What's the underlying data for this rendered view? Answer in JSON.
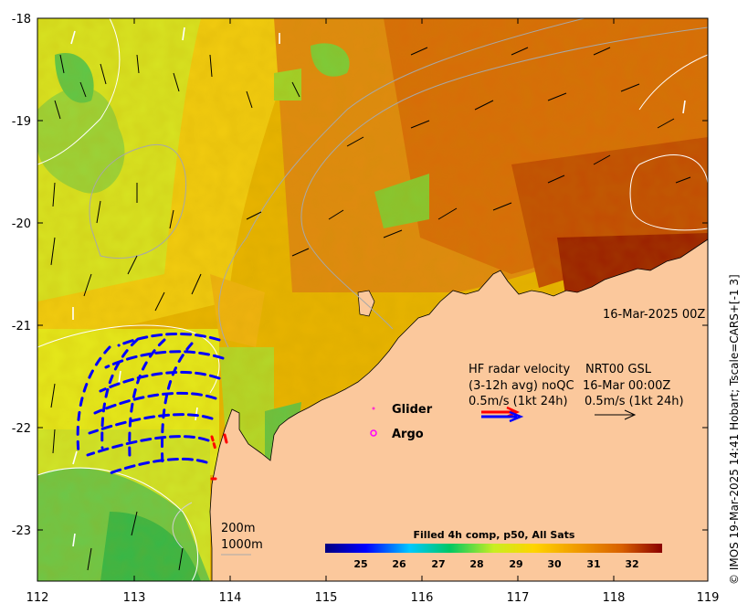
{
  "map": {
    "x_ticks": [
      "112",
      "113",
      "114",
      "115",
      "116",
      "117",
      "118",
      "119"
    ],
    "y_ticks": [
      "-18",
      "-19",
      "-20",
      "-21",
      "-22",
      "-23"
    ],
    "lon_range": [
      112,
      119
    ],
    "lat_range": [
      -23.5,
      -18
    ],
    "timestamp_label": "16-Mar-2025 00Z",
    "legend": {
      "glider_label": "Glider",
      "glider_color": "#ff33cc",
      "argo_label": "Argo",
      "argo_color": "#ff00ff",
      "hf_line1": "HF radar velocity",
      "hf_line2": "(3-12h avg) noQC",
      "hf_line3": "0.5m/s (1kt 24h)",
      "nrt_line1": "NRT00 GSL",
      "nrt_line2": "16-Mar 00:00Z",
      "nrt_line3": "0.5m/s (1kt 24h)"
    },
    "contours": {
      "line1": "200m",
      "line2": "1000m"
    },
    "colorbar": {
      "title": "Filled 4h comp, p50, All Sats",
      "ticks": [
        "25",
        "26",
        "27",
        "28",
        "29",
        "30",
        "31",
        "32"
      ],
      "range": [
        24.1,
        32.8
      ]
    },
    "side_label": "© IMOS 19-Mar-2025 14:41 Hobart; Tscale=CARS+[-1 3]"
  },
  "colors": {
    "land": "#fbc89c",
    "hf_radar_blue": "#0000ff",
    "hf_radar_red": "#ff0000"
  }
}
